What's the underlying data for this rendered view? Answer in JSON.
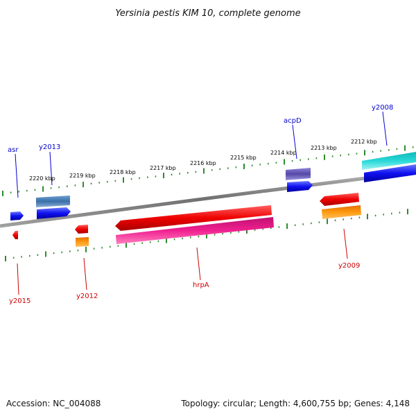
{
  "title": "Yersinia pestis KIM 10, complete genome",
  "footer": {
    "accession": "Accession: NC_004088",
    "summary": "Topology: circular; Length: 4,600,755 bp; Genes: 4,148"
  },
  "colors": {
    "backbone": "#808080",
    "tick": "#2e8b2e",
    "forward_label": "#0000cc",
    "reverse_label": "#cc0000"
  },
  "kbp_ticks": [
    "2220 kbp",
    "2219 kbp",
    "2218 kbp",
    "2217 kbp",
    "2216 kbp",
    "2215 kbp",
    "2214 kbp",
    "2213 kbp",
    "2212 kbp"
  ],
  "gene_labels": {
    "forward": [
      "asr",
      "y2013",
      "acpD",
      "y2008"
    ],
    "reverse": [
      "y2015",
      "y2012",
      "hrpA",
      "y2009"
    ]
  }
}
